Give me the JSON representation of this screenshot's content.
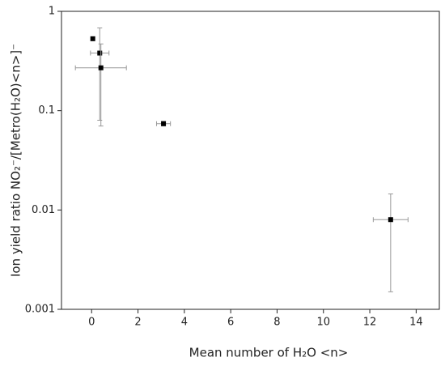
{
  "chart_data": {
    "type": "scatter",
    "xlabel": "Mean number of H₂O <n>",
    "ylabel": "Ion yield ratio NO₂⁻/[Metro(H₂O)<n>]⁻",
    "x": [
      0.05,
      0.35,
      0.4,
      3.1,
      12.9
    ],
    "xerr": [
      null,
      0.4,
      1.1,
      0.3,
      0.75
    ],
    "values": [
      0.53,
      0.38,
      0.27,
      0.074,
      0.008
    ],
    "yerr": [
      null,
      0.3,
      0.2,
      0.004,
      0.0065
    ],
    "color": "#000000",
    "error_color": "#999999",
    "xlim": [
      -1.3,
      15
    ],
    "xticks": [
      0,
      2,
      4,
      6,
      8,
      10,
      12,
      14
    ],
    "ylim": [
      0.001,
      1
    ],
    "yticks": [
      0.001,
      0.01,
      0.1,
      1
    ],
    "ylog": true
  }
}
